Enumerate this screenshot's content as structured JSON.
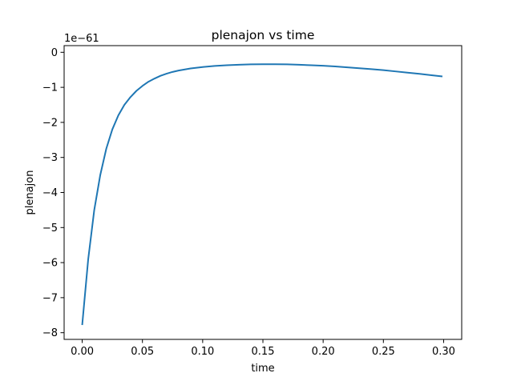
{
  "chart_data": {
    "type": "line",
    "title": "plenajon vs time",
    "xlabel": "time",
    "ylabel": "plenajon",
    "offset_label": "1e−61",
    "xlim": [
      -0.015,
      0.315
    ],
    "ylim": [
      -8.19,
      0.19
    ],
    "xticks": [
      {
        "value": 0.0,
        "label": "0.00"
      },
      {
        "value": 0.05,
        "label": "0.05"
      },
      {
        "value": 0.1,
        "label": "0.10"
      },
      {
        "value": 0.15,
        "label": "0.15"
      },
      {
        "value": 0.2,
        "label": "0.20"
      },
      {
        "value": 0.25,
        "label": "0.25"
      },
      {
        "value": 0.3,
        "label": "0.30"
      }
    ],
    "yticks": [
      {
        "value": 0,
        "label": "0"
      },
      {
        "value": -1,
        "label": "−1"
      },
      {
        "value": -2,
        "label": "−2"
      },
      {
        "value": -3,
        "label": "−3"
      },
      {
        "value": -4,
        "label": "−4"
      },
      {
        "value": -5,
        "label": "−5"
      },
      {
        "value": -6,
        "label": "−6"
      },
      {
        "value": -7,
        "label": "−7"
      },
      {
        "value": -8,
        "label": "−8"
      }
    ],
    "grid": false,
    "series": [
      {
        "color": "#1f77b4",
        "x": [
          0.0,
          0.005,
          0.01,
          0.015,
          0.02,
          0.025,
          0.03,
          0.035,
          0.04,
          0.045,
          0.05,
          0.055,
          0.06,
          0.065,
          0.07,
          0.075,
          0.08,
          0.09,
          0.1,
          0.11,
          0.12,
          0.13,
          0.14,
          0.15,
          0.16,
          0.17,
          0.18,
          0.19,
          0.2,
          0.21,
          0.22,
          0.23,
          0.24,
          0.25,
          0.26,
          0.27,
          0.28,
          0.29,
          0.299
        ],
        "y": [
          -7.78,
          -5.9,
          -4.5,
          -3.5,
          -2.75,
          -2.2,
          -1.8,
          -1.5,
          -1.28,
          -1.1,
          -0.96,
          -0.84,
          -0.75,
          -0.67,
          -0.61,
          -0.56,
          -0.52,
          -0.46,
          -0.42,
          -0.39,
          -0.37,
          -0.355,
          -0.345,
          -0.34,
          -0.34,
          -0.345,
          -0.355,
          -0.37,
          -0.385,
          -0.405,
          -0.43,
          -0.455,
          -0.48,
          -0.51,
          -0.545,
          -0.58,
          -0.615,
          -0.655,
          -0.69
        ]
      }
    ]
  }
}
